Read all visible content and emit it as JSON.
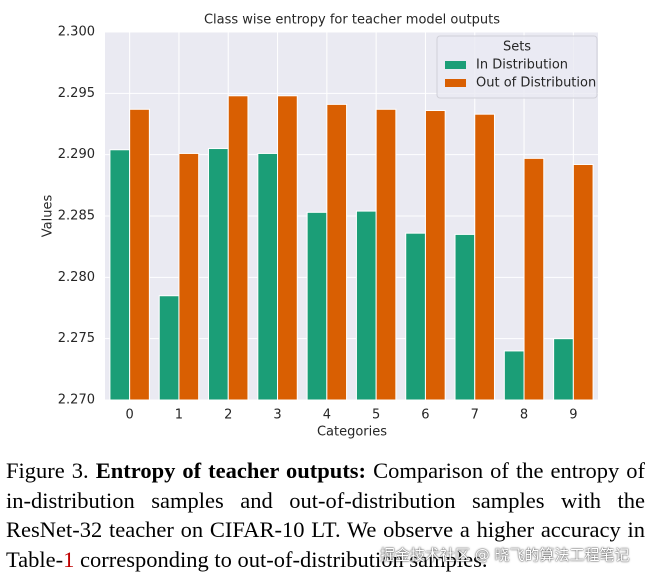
{
  "chart_data": {
    "type": "bar",
    "title": "Class wise entropy for teacher model outputs",
    "x_label": "Categories",
    "y_label": "Values",
    "categories": [
      "0",
      "1",
      "2",
      "3",
      "4",
      "5",
      "6",
      "7",
      "8",
      "9"
    ],
    "series": [
      {
        "name": "In Distribution",
        "color": "#1b9e77",
        "values": [
          2.2904,
          2.2785,
          2.2905,
          2.2901,
          2.2853,
          2.2854,
          2.2836,
          2.2835,
          2.274,
          2.275
        ]
      },
      {
        "name": "Out of Distribution",
        "color": "#d95f02",
        "values": [
          2.2937,
          2.2901,
          2.2948,
          2.2948,
          2.2941,
          2.2937,
          2.2936,
          2.2933,
          2.2897,
          2.2892
        ]
      }
    ],
    "ylim": [
      2.27,
      2.3
    ],
    "yticks": [
      {
        "value": 2.27,
        "label": "2.270"
      },
      2.275,
      {
        "value": 2.28,
        "label": "2.280"
      },
      2.285,
      {
        "value": 2.29,
        "label": "2.290"
      },
      2.295,
      {
        "value": 2.3,
        "label": "2.300"
      }
    ],
    "grid": true,
    "legend_title": "Sets",
    "legend_position": "upper right"
  },
  "caption": {
    "label": "Figure 3.",
    "bold": "Entropy of teacher outputs:",
    "text": "Comparison of the entropy of in-distribution samples and out-of-distribution samples with the ResNet-32 teacher on CIFAR-10 LT. We observe a higher accuracy in Table-",
    "ref": "1",
    "tail": "corresponding to out-of-distribution samples."
  },
  "watermark": "掘金技术社区 @ 晓飞的算法工程笔记"
}
